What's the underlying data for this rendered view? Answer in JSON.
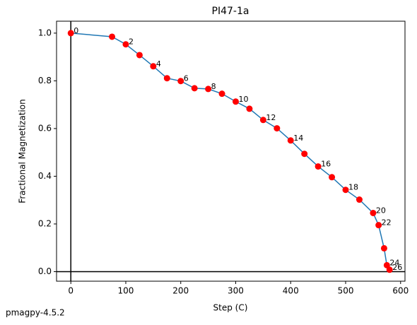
{
  "chart_data": {
    "type": "line",
    "title": "PI47-1a",
    "xlabel": "Step (C)",
    "ylabel": "Fractional Magnetization",
    "footer": "pmagpy-4.5.2",
    "x": [
      0,
      75,
      100,
      125,
      150,
      175,
      200,
      225,
      250,
      275,
      300,
      325,
      350,
      375,
      400,
      425,
      450,
      475,
      500,
      525,
      550,
      560,
      570,
      575,
      580
    ],
    "series": [
      {
        "values": [
          1.0,
          0.985,
          0.953,
          0.908,
          0.861,
          0.811,
          0.799,
          0.769,
          0.766,
          0.746,
          0.713,
          0.683,
          0.636,
          0.601,
          0.55,
          0.494,
          0.441,
          0.396,
          0.343,
          0.302,
          0.246,
          0.195,
          0.098,
          0.027,
          0.008
        ],
        "color": "#1f77b4",
        "marker_color": "#ff0000"
      }
    ],
    "point_labels": [
      "0",
      null,
      "2",
      null,
      "4",
      null,
      "6",
      null,
      "8",
      null,
      "10",
      null,
      "12",
      null,
      "14",
      null,
      "16",
      null,
      "18",
      null,
      "20",
      "22",
      null,
      "24",
      "26"
    ],
    "xlim": [
      -26,
      608
    ],
    "ylim": [
      -0.04,
      1.05
    ],
    "xticks": [
      0,
      100,
      200,
      300,
      400,
      500,
      600
    ],
    "yticks": [
      {
        "value": 0,
        "label": "0.0"
      },
      {
        "value": 0.2,
        "label": "0.2"
      },
      {
        "value": 0.4,
        "label": "0.4"
      },
      {
        "value": 0.6,
        "label": "0.6"
      },
      {
        "value": 0.8,
        "label": "0.8"
      },
      {
        "value": 1,
        "label": "1.0"
      }
    ],
    "hline": 0,
    "vline": 0
  }
}
